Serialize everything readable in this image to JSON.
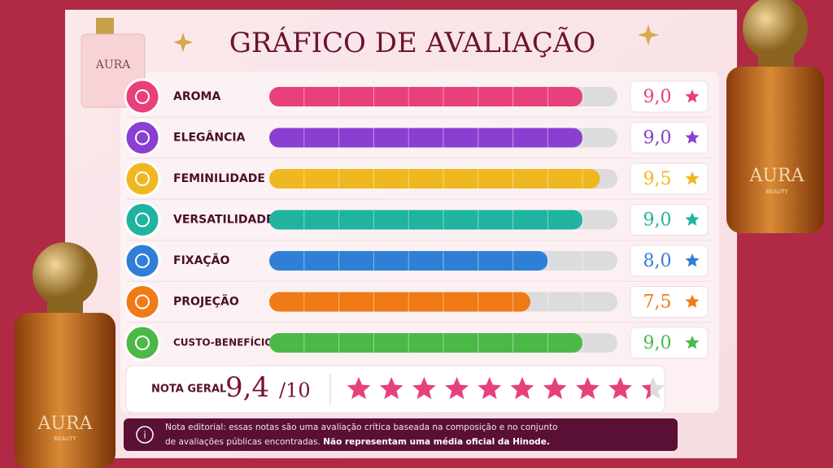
{
  "chart_data": {
    "type": "bar",
    "orientation": "horizontal",
    "title": "GRÁFICO DE AVALIAÇÃO",
    "categories": [
      "AROMA",
      "ELEGÂNCIA",
      "FEMINILIDADE",
      "VERSATILIDADE",
      "FIXAÇÃO",
      "PROJEÇÃO",
      "CUSTO-BENEFÍCIO"
    ],
    "values": [
      9.0,
      9.0,
      9.5,
      9.0,
      8.0,
      7.5,
      9.0
    ],
    "value_labels": [
      "9,0",
      "9,0",
      "9,5",
      "9,0",
      "8,0",
      "7,5",
      "9,0"
    ],
    "colors": [
      "#e8407c",
      "#8a3fd1",
      "#f0b820",
      "#1fb3a0",
      "#2f7fd6",
      "#f07a16",
      "#4cb848"
    ],
    "xlim": [
      0,
      10
    ],
    "overall": {
      "label": "NOTA GERAL",
      "value": 9.4,
      "value_label": "9,4",
      "max": {
        "value": 10,
        "label": "/10"
      },
      "color": "#e8407c"
    }
  },
  "note": {
    "text": "Nota editorial: essas notas são uma avaliação crítica baseada na composição e no conjunto",
    "text2": "de avaliações públicas encontradas.",
    "bold": "Não representam uma média oficial da Hinode."
  },
  "decor": {
    "brand": "AURA",
    "sub": "BEAUTY"
  }
}
